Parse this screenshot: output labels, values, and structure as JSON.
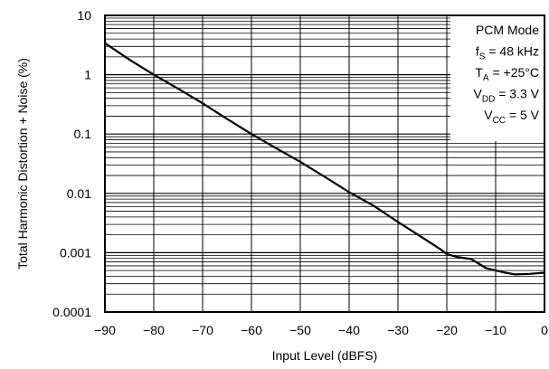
{
  "chart_data": {
    "type": "line",
    "title": "",
    "xlabel": "Input Level (dBFS)",
    "ylabel": "Total Harmonic Distortion + Noise (%)",
    "xlim": [
      -90,
      0
    ],
    "ylim": [
      0.0001,
      10
    ],
    "yscale": "log",
    "grid": true,
    "x_ticks": [
      -90,
      -80,
      -70,
      -60,
      -50,
      -40,
      -30,
      -20,
      -10,
      0
    ],
    "x_tick_labels": [
      "−90",
      "−80",
      "−70",
      "−60",
      "−50",
      "−40",
      "−30",
      "−20",
      "−10",
      "0"
    ],
    "y_ticks": [
      0.0001,
      0.001,
      0.01,
      0.1,
      1,
      10
    ],
    "y_tick_labels": [
      "0.0001",
      "0.001",
      "0.01",
      "0.1",
      "1",
      "10"
    ],
    "annotation": {
      "lines": [
        {
          "parts": [
            {
              "t": "PCM Mode"
            }
          ]
        },
        {
          "parts": [
            {
              "t": "f"
            },
            {
              "t": "S",
              "sub": true
            },
            {
              "t": " = 48 kHz"
            }
          ]
        },
        {
          "parts": [
            {
              "t": "T"
            },
            {
              "t": "A",
              "sub": true
            },
            {
              "t": " = +25°C"
            }
          ]
        },
        {
          "parts": [
            {
              "t": "V"
            },
            {
              "t": "DD",
              "sub": true
            },
            {
              "t": " = 3.3 V"
            }
          ]
        },
        {
          "parts": [
            {
              "t": "V"
            },
            {
              "t": "CC",
              "sub": true
            },
            {
              "t": " = 5 V"
            }
          ]
        }
      ]
    },
    "series": [
      {
        "color": "#000000",
        "x": [
          -90,
          -85,
          -80,
          -75,
          -70,
          -65,
          -60,
          -55,
          -50,
          -45,
          -40,
          -35,
          -30,
          -25,
          -21,
          -20,
          -18,
          -15,
          -13,
          -12,
          -10,
          -8,
          -6,
          -3,
          0
        ],
        "y": [
          3.4,
          1.8,
          1.0,
          0.58,
          0.33,
          0.18,
          0.1,
          0.058,
          0.034,
          0.019,
          0.0105,
          0.0062,
          0.0033,
          0.0018,
          0.0011,
          0.00095,
          0.00085,
          0.00078,
          0.00062,
          0.00055,
          0.0005,
          0.00046,
          0.00043,
          0.00044,
          0.00046
        ]
      }
    ]
  }
}
